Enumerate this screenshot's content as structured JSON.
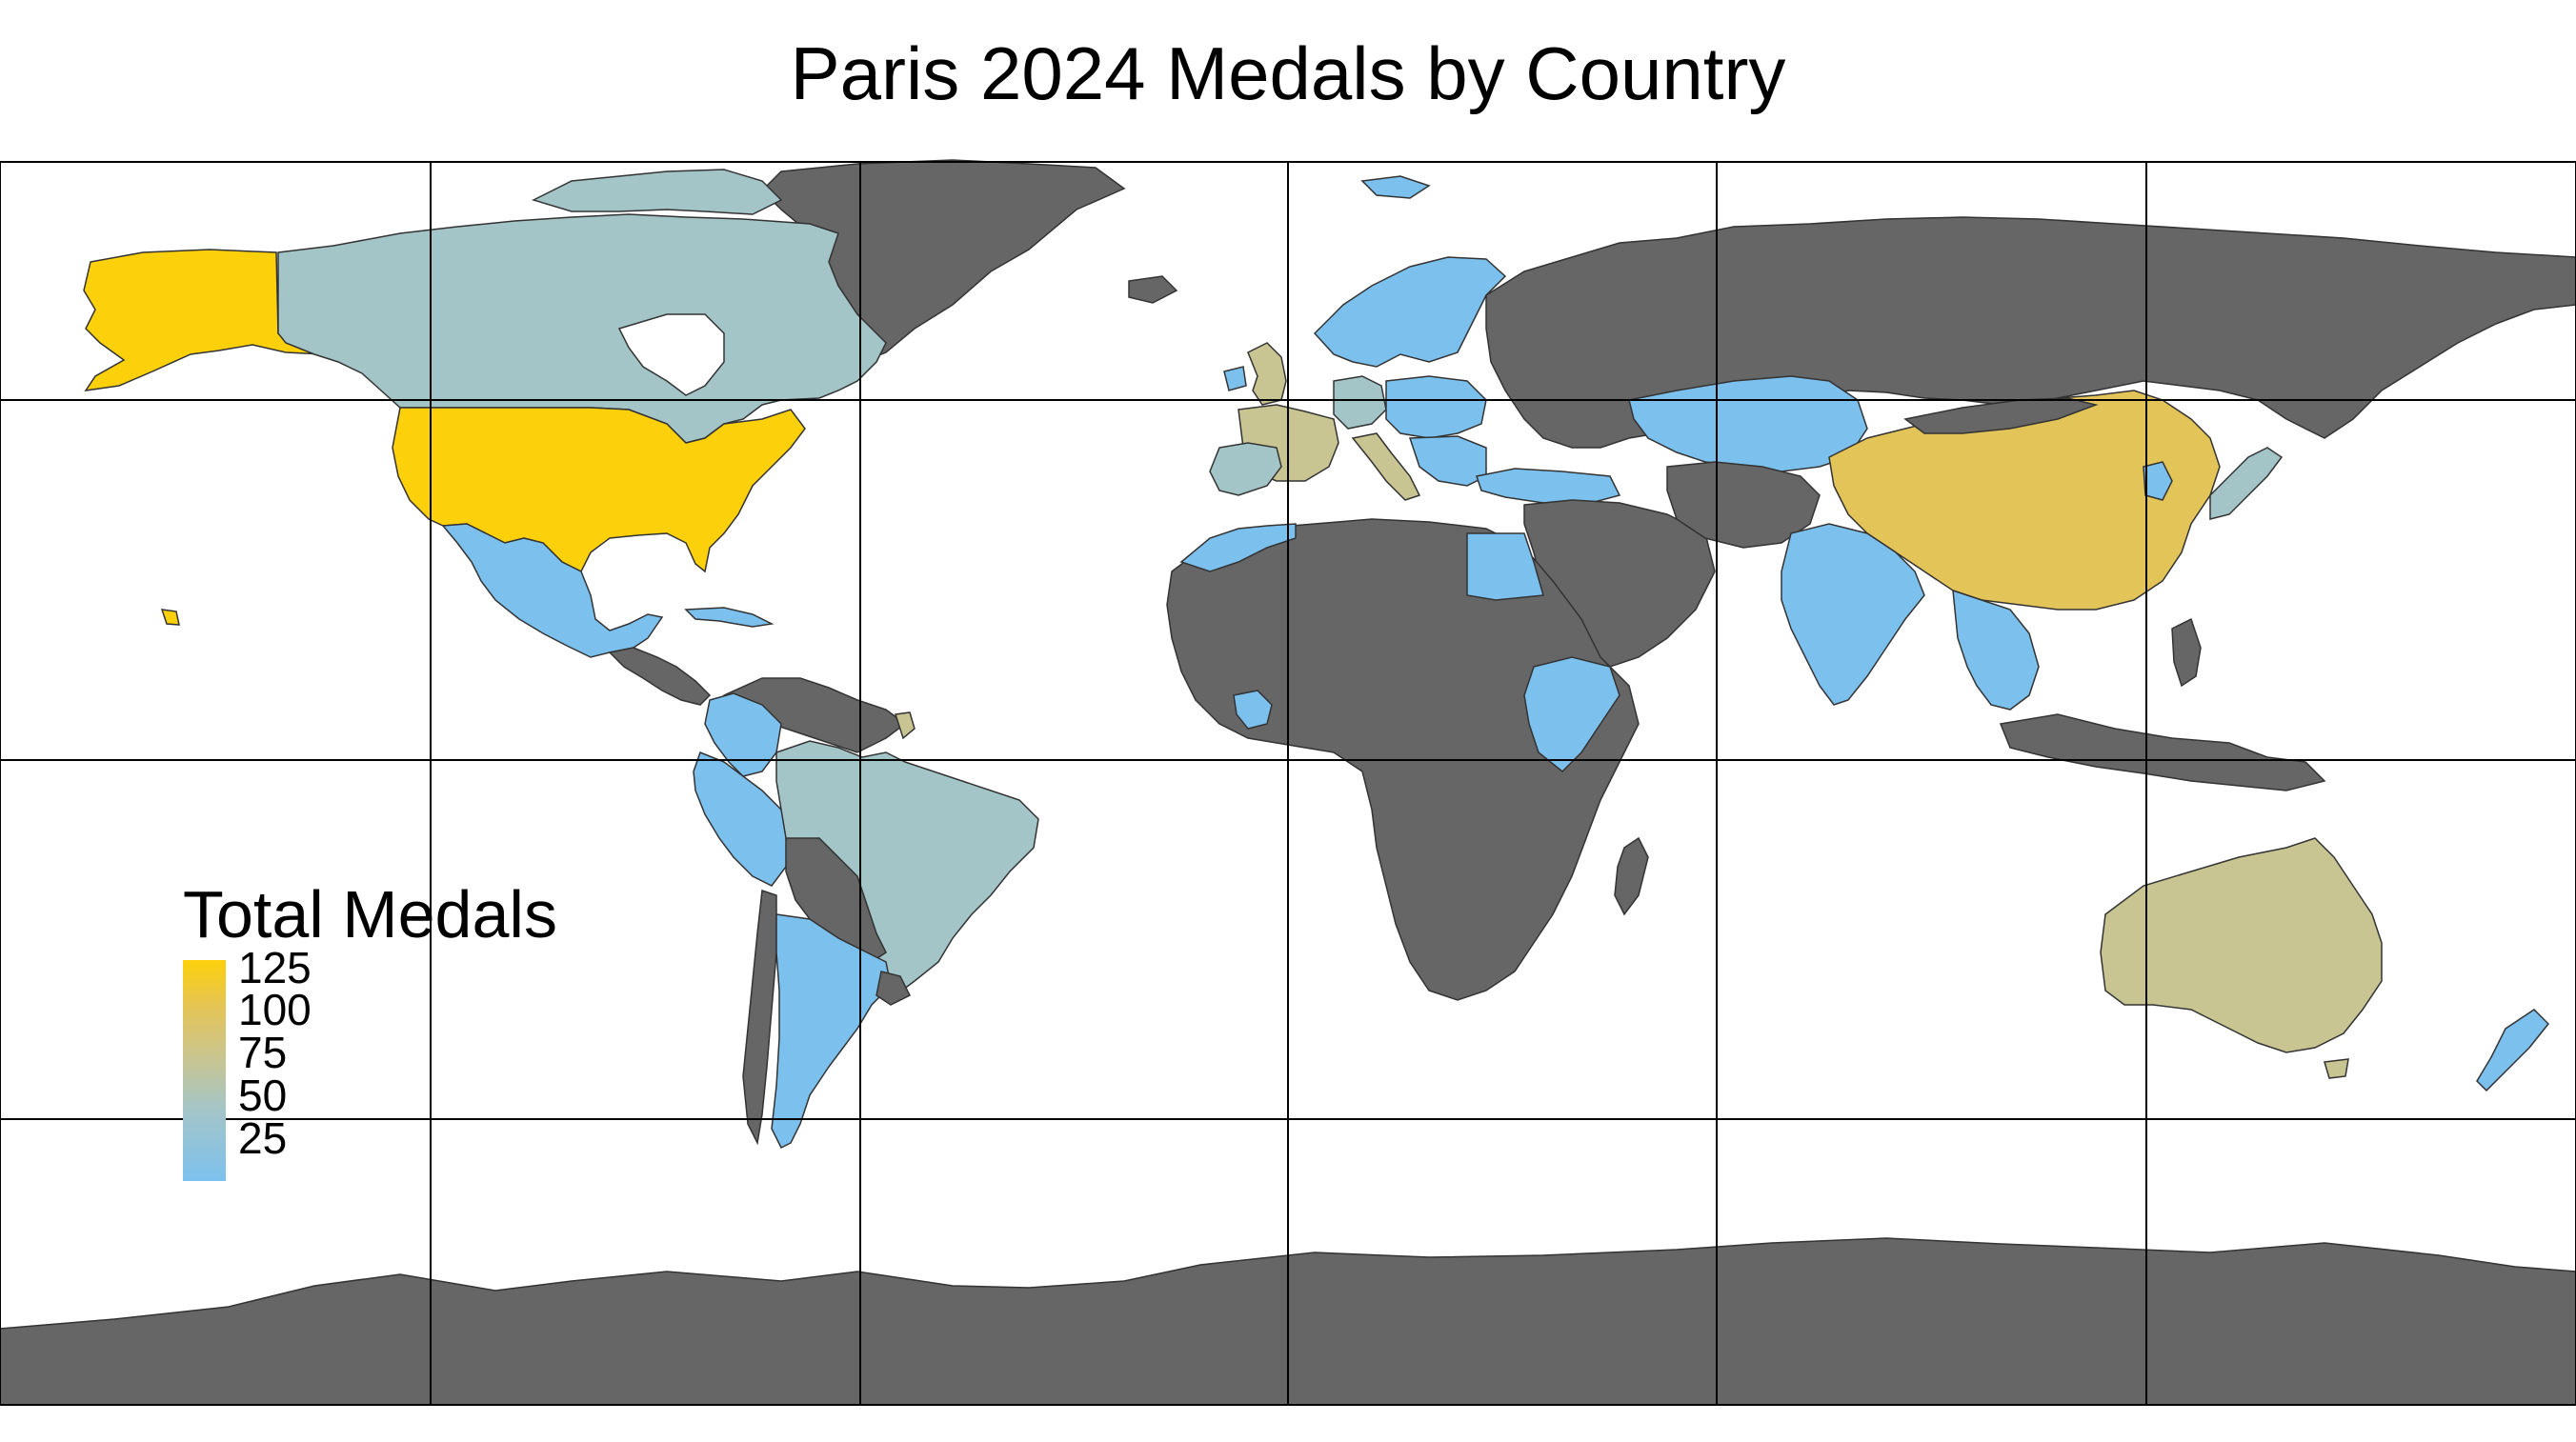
{
  "title": "Paris 2024 Medals by Country",
  "legend": {
    "title": "Total Medals",
    "labels": [
      "125",
      "100",
      "75",
      "50",
      "25"
    ]
  },
  "colors": {
    "no_data": "#666666",
    "grid": "#000000",
    "ocean": "#ffffff",
    "scale_high": "#fcd00b",
    "scale_mid": "#c8c592",
    "scale_low": "#7cc1ee"
  }
}
